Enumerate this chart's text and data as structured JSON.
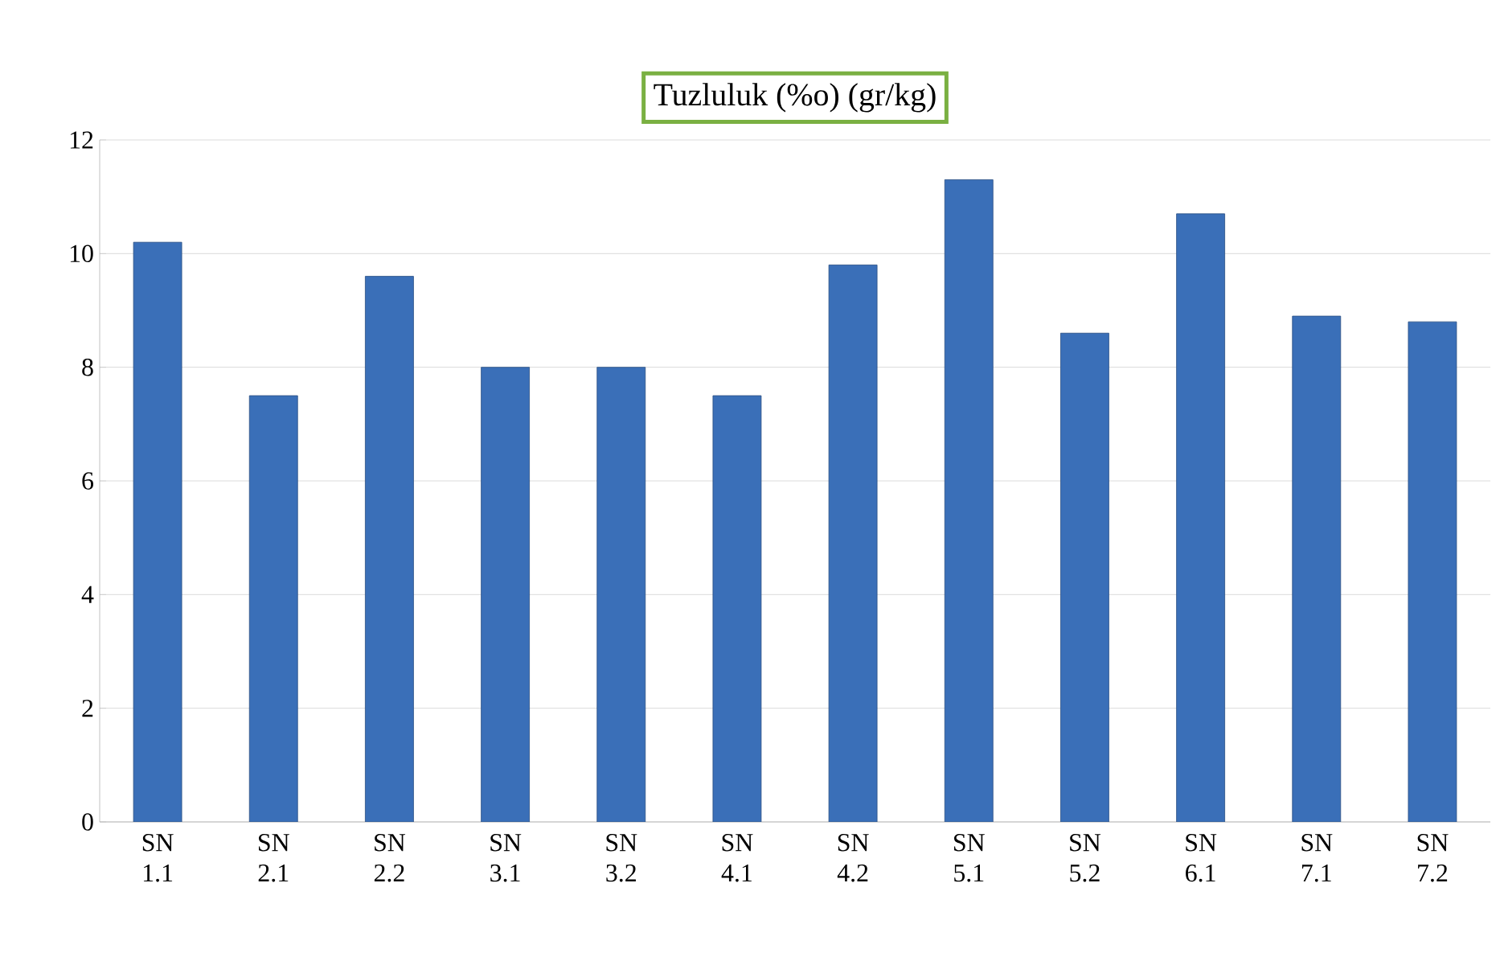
{
  "chart_data": {
    "type": "bar",
    "title": "Tuzluluk (%o) (gr/kg)",
    "categories": [
      "SN 1.1",
      "SN 2.1",
      "SN 2.2",
      "SN 3.1",
      "SN 3.2",
      "SN 4.1",
      "SN 4.2",
      "SN 5.1",
      "SN 5.2",
      "SN 6.1",
      "SN 7.1",
      "SN 7.2"
    ],
    "values": [
      10.2,
      7.5,
      9.6,
      8.0,
      8.0,
      7.5,
      9.8,
      11.3,
      8.6,
      10.7,
      8.9,
      8.8
    ],
    "color": "#3a6fb8",
    "ylim": [
      0,
      12
    ],
    "yticks": [
      0,
      2,
      4,
      6,
      8,
      10,
      12
    ],
    "grid": "y"
  }
}
